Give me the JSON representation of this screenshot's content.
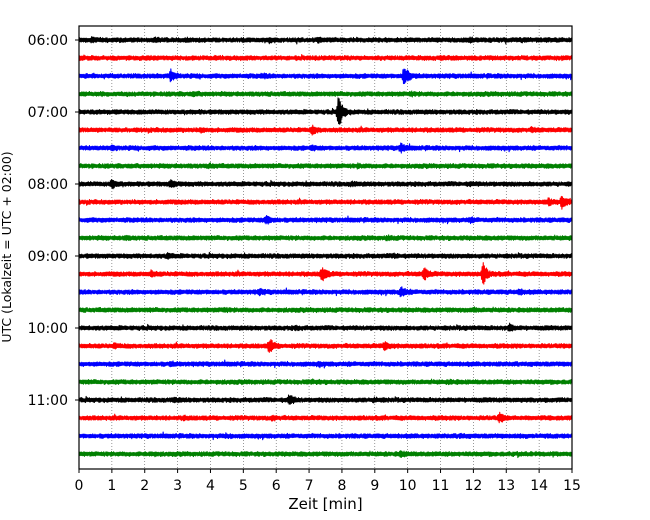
{
  "chart_data": {
    "type": "line",
    "title": "",
    "xlabel": "Zeit  [min]",
    "ylabel": "UTC (Lokalzeit = UTC + 02:00)",
    "xlim": [
      0,
      15
    ],
    "xticks": [
      0,
      1,
      2,
      3,
      4,
      5,
      6,
      7,
      8,
      9,
      10,
      11,
      12,
      13,
      14,
      15
    ],
    "grid": "vertical dotted",
    "trace_interval_min": 15,
    "ytick_labels": [
      "06:00",
      "07:00",
      "08:00",
      "09:00",
      "10:00",
      "11:00"
    ],
    "trace_colors": [
      "#000000",
      "#ff0000",
      "#0000ff",
      "#008000"
    ],
    "traces": [
      {
        "start": "06:00",
        "events": [
          [
            0.4,
            0.25
          ],
          [
            2.3,
            0.2
          ],
          [
            5.8,
            0.25
          ],
          [
            7.3,
            0.25
          ],
          [
            11.9,
            0.25
          ]
        ]
      },
      {
        "start": "06:15",
        "events": [
          [
            2.0,
            0.15
          ],
          [
            11.0,
            0.15
          ]
        ]
      },
      {
        "start": "06:30",
        "events": [
          [
            2.8,
            0.8
          ],
          [
            5.6,
            0.2
          ],
          [
            9.9,
            1.6
          ]
        ]
      },
      {
        "start": "06:45",
        "events": [
          [
            3.5,
            0.15
          ],
          [
            10.1,
            0.15
          ]
        ]
      },
      {
        "start": "07:00",
        "events": [
          [
            7.9,
            2.6
          ]
        ]
      },
      {
        "start": "07:15",
        "events": [
          [
            7.1,
            0.5
          ],
          [
            3.7,
            0.15
          ],
          [
            13.8,
            0.2
          ]
        ]
      },
      {
        "start": "07:30",
        "events": [
          [
            9.8,
            0.6
          ],
          [
            7.1,
            0.2
          ],
          [
            1.0,
            0.15
          ]
        ]
      },
      {
        "start": "07:45",
        "events": [
          [
            4.0,
            0.15
          ],
          [
            8.5,
            0.15
          ]
        ]
      },
      {
        "start": "08:00",
        "events": [
          [
            1.0,
            0.6
          ],
          [
            2.8,
            0.45
          ],
          [
            8.3,
            0.2
          ],
          [
            11.9,
            0.15
          ]
        ]
      },
      {
        "start": "08:15",
        "events": [
          [
            14.7,
            0.8
          ],
          [
            14.3,
            0.4
          ]
        ]
      },
      {
        "start": "08:30",
        "events": [
          [
            5.7,
            0.6
          ],
          [
            11.9,
            0.2
          ]
        ]
      },
      {
        "start": "08:45",
        "events": [
          [
            1.4,
            0.15
          ],
          [
            9.4,
            0.15
          ]
        ]
      },
      {
        "start": "09:00",
        "events": [
          [
            2.7,
            0.25
          ],
          [
            9.6,
            0.15
          ]
        ]
      },
      {
        "start": "09:15",
        "events": [
          [
            7.4,
            1.1
          ],
          [
            10.5,
            0.9
          ],
          [
            12.3,
            1.5
          ],
          [
            2.2,
            0.3
          ]
        ]
      },
      {
        "start": "09:30",
        "events": [
          [
            9.8,
            0.7
          ],
          [
            5.5,
            0.3
          ],
          [
            13.4,
            0.25
          ]
        ]
      },
      {
        "start": "09:45",
        "events": [
          [
            4.4,
            0.15
          ],
          [
            12.0,
            0.15
          ]
        ]
      },
      {
        "start": "10:00",
        "events": [
          [
            13.1,
            0.4
          ],
          [
            6.6,
            0.15
          ]
        ]
      },
      {
        "start": "10:15",
        "events": [
          [
            5.8,
            1.0
          ],
          [
            9.3,
            0.5
          ],
          [
            1.1,
            0.2
          ]
        ]
      },
      {
        "start": "10:30",
        "events": [
          [
            2.8,
            0.15
          ],
          [
            7.3,
            0.15
          ]
        ]
      },
      {
        "start": "10:45",
        "events": [
          [
            7.1,
            0.15
          ],
          [
            11.3,
            0.15
          ]
        ]
      },
      {
        "start": "11:00",
        "events": [
          [
            6.4,
            0.7
          ],
          [
            2.9,
            0.2
          ],
          [
            9.0,
            0.2
          ]
        ]
      },
      {
        "start": "11:15",
        "events": [
          [
            12.8,
            0.55
          ],
          [
            5.9,
            0.2
          ],
          [
            3.2,
            0.15
          ]
        ]
      },
      {
        "start": "11:30",
        "events": [
          [
            11.6,
            0.15
          ],
          [
            4.5,
            0.15
          ]
        ]
      },
      {
        "start": "11:45",
        "events": [
          [
            9.8,
            0.3
          ],
          [
            2.2,
            0.15
          ]
        ]
      }
    ]
  }
}
